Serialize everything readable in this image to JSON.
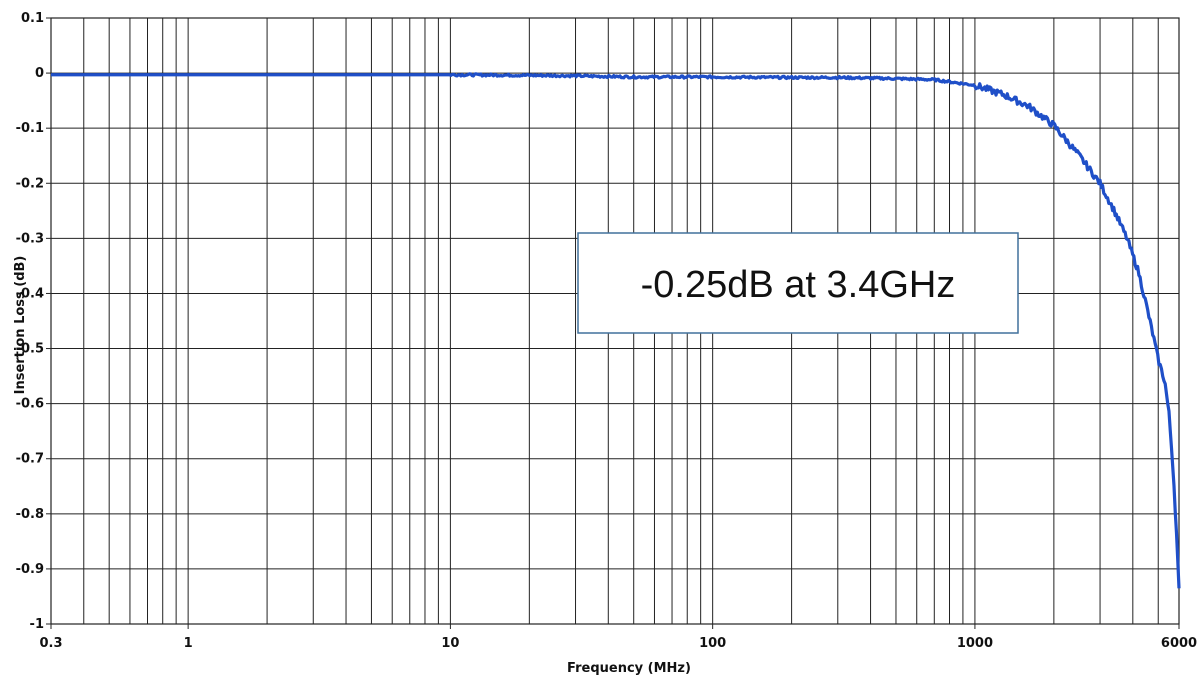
{
  "chart_data": {
    "type": "line",
    "title": "",
    "xlabel": "Frequency (MHz)",
    "ylabel": "Insertion Loss (dB)",
    "x_scale": "log",
    "xlim": [
      0.3,
      6000
    ],
    "ylim": [
      -1,
      0.1
    ],
    "x_ticks": [
      0.3,
      1,
      10,
      100,
      1000,
      6000
    ],
    "x_tick_labels": [
      "0.3",
      "1",
      "10",
      "100",
      "1000",
      "6000"
    ],
    "y_ticks": [
      0.1,
      0,
      -0.1,
      -0.2,
      -0.3,
      -0.4,
      -0.5,
      -0.6,
      -0.7,
      -0.8,
      -0.9,
      -1
    ],
    "y_tick_labels": [
      "0.1",
      "0",
      "-0.1",
      "-0.2",
      "-0.3",
      "-0.4",
      "-0.5",
      "-0.6",
      "-0.7",
      "-0.8",
      "-0.9",
      "-1"
    ],
    "grid": true,
    "series": [
      {
        "color": "#1f4fc8",
        "x": [
          0.3,
          1,
          10,
          20,
          30,
          50,
          100,
          200,
          300,
          500,
          700,
          1000,
          1300,
          1600,
          2000,
          2500,
          3000,
          3400,
          3800,
          4200,
          4500,
          4800,
          5000,
          5300,
          5500,
          5700,
          5850,
          6000
        ],
        "y": [
          -0.003,
          -0.003,
          -0.003,
          -0.004,
          -0.005,
          -0.007,
          -0.007,
          -0.008,
          -0.008,
          -0.01,
          -0.012,
          -0.022,
          -0.04,
          -0.06,
          -0.095,
          -0.15,
          -0.2,
          -0.25,
          -0.3,
          -0.36,
          -0.42,
          -0.48,
          -0.52,
          -0.56,
          -0.62,
          -0.72,
          -0.82,
          -0.94
        ]
      }
    ],
    "annotation": {
      "text": "-0.25dB at 3.4GHz"
    }
  }
}
